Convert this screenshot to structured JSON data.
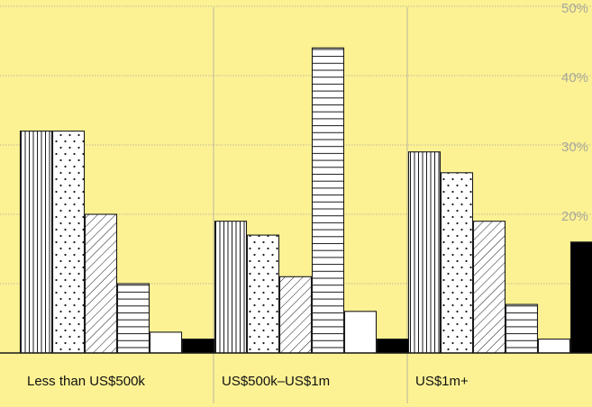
{
  "colors": {
    "background": "#fdf293",
    "grid": "#a9a6a0",
    "axis": "#1a1a1a",
    "tick_label": "#a8a89c",
    "category_label": "#111111",
    "bar_fill": "#ffffff",
    "bar_stroke": "#1a1a1a",
    "solid_bar": "#000000"
  },
  "chart_data": {
    "type": "bar",
    "title": "",
    "xlabel": "",
    "ylabel": "",
    "ylim": [
      0,
      52
    ],
    "y_ticks": [
      20,
      30,
      40,
      50
    ],
    "y_tick_labels": [
      "20%",
      "30%",
      "40%",
      "50%"
    ],
    "categories": [
      "Less than US$500k",
      "US$500k–US$1m",
      "US$1m+"
    ],
    "grid": true,
    "legend": "none",
    "series": [
      {
        "pattern": "vertical-lines",
        "values": [
          32,
          19,
          29
        ]
      },
      {
        "pattern": "dots",
        "values": [
          32,
          17,
          26
        ]
      },
      {
        "pattern": "diagonal-lines",
        "values": [
          20,
          11,
          19
        ]
      },
      {
        "pattern": "horizontal-lines",
        "values": [
          10,
          44,
          7
        ]
      },
      {
        "pattern": "white",
        "values": [
          3,
          6,
          2
        ]
      },
      {
        "pattern": "black",
        "values": [
          2,
          2,
          16
        ]
      }
    ]
  }
}
